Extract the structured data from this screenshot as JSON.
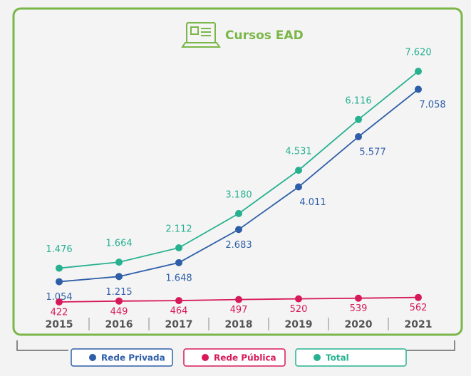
{
  "chart_data": {
    "type": "line",
    "title": "Cursos EAD",
    "categories": [
      "2015",
      "2016",
      "2017",
      "2018",
      "2019",
      "2020",
      "2021"
    ],
    "series": [
      {
        "name": "Rede Privada",
        "color": "#2f5ea8",
        "values": [
          1054,
          1215,
          1648,
          2683,
          4011,
          5577,
          7058
        ],
        "value_labels": [
          "1.054",
          "1.215",
          "1.648",
          "2.683",
          "4.011",
          "5.577",
          "7.058"
        ]
      },
      {
        "name": "Rede Pública",
        "color": "#d6195a",
        "values": [
          422,
          449,
          464,
          497,
          520,
          539,
          562
        ]
      },
      {
        "name": "Total",
        "color": "#27b190",
        "values": [
          1476,
          1664,
          2112,
          3180,
          4531,
          6116,
          7620
        ],
        "value_labels": [
          "1.476",
          "1.664",
          "2.112",
          "3.180",
          "4.531",
          "6.116",
          "7.620"
        ]
      }
    ],
    "ylim": [
      0,
      8000
    ],
    "legend": "bottom",
    "grid": false
  }
}
